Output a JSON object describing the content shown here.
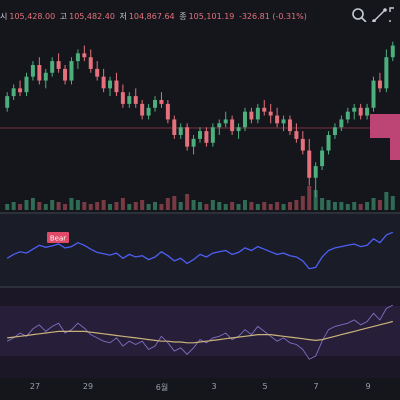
{
  "ohlc": {
    "open_label": "시",
    "open_value": "105,428.00",
    "high_label": "고",
    "high_value": "105,482.40",
    "low_label": "저",
    "low_value": "104,867.64",
    "close_label": "종",
    "close_value": "105,101.19",
    "change_text": "-326.81 (-0.31%)"
  },
  "toolbar": {
    "zoom_icon": "zoom-in-icon",
    "draw_icon": "trendline-icon",
    "expand_icon": "expand-icon"
  },
  "colors": {
    "up": "#4caf7d",
    "down": "#e5717d",
    "rsi_line": "#4d5ef5",
    "bear_label": "#e04a68",
    "pink_zone": "#d94d86"
  },
  "rsi_panel": {
    "signal_label": "Bear"
  },
  "x_axis": {
    "labels": [
      "27",
      "29",
      "6월",
      "3",
      "5",
      "7",
      "9"
    ]
  },
  "chart_data": [
    {
      "type": "candlestick",
      "title": "",
      "series": [
        {
          "name": "",
          "values": [
            [
              100,
              104,
              99,
              103
            ],
            [
              103,
              106,
              102,
              105
            ],
            [
              105,
              107,
              103,
              104
            ],
            [
              104,
              109,
              103,
              108
            ],
            [
              108,
              112,
              107,
              111
            ],
            [
              111,
              113,
              106,
              107
            ],
            [
              107,
              110,
              105,
              109
            ],
            [
              109,
              113,
              108,
              112
            ],
            [
              112,
              114,
              109,
              110
            ],
            [
              110,
              111,
              106,
              107
            ],
            [
              107,
              113,
              106,
              112
            ],
            [
              112,
              115,
              110,
              114
            ],
            [
              114,
              116,
              112,
              113
            ],
            [
              113,
              115,
              109,
              110
            ],
            [
              110,
              112,
              107,
              108
            ],
            [
              108,
              110,
              104,
              105
            ],
            [
              105,
              108,
              103,
              107
            ],
            [
              107,
              109,
              103,
              104
            ],
            [
              104,
              106,
              100,
              101
            ],
            [
              101,
              104,
              100,
              103
            ],
            [
              103,
              105,
              100,
              101
            ],
            [
              101,
              102,
              97,
              98
            ],
            [
              98,
              101,
              97,
              100
            ],
            [
              100,
              103,
              99,
              102
            ],
            [
              102,
              104,
              100,
              101
            ],
            [
              101,
              102,
              96,
              97
            ],
            [
              97,
              98,
              92,
              93
            ],
            [
              93,
              96,
              92,
              95
            ],
            [
              95,
              96,
              89,
              90
            ],
            [
              90,
              93,
              88,
              92
            ],
            [
              92,
              95,
              91,
              94
            ],
            [
              94,
              95,
              90,
              91
            ],
            [
              91,
              96,
              90,
              95
            ],
            [
              95,
              97,
              93,
              96
            ],
            [
              96,
              99,
              95,
              97
            ],
            [
              97,
              98,
              93,
              94
            ],
            [
              94,
              96,
              92,
              95
            ],
            [
              95,
              100,
              94,
              99
            ],
            [
              99,
              100,
              96,
              97
            ],
            [
              97,
              101,
              96,
              100
            ],
            [
              100,
              102,
              98,
              99
            ],
            [
              99,
              101,
              96,
              98
            ],
            [
              98,
              100,
              95,
              96
            ],
            [
              96,
              98,
              94,
              97
            ],
            [
              97,
              98,
              93,
              94
            ],
            [
              94,
              96,
              91,
              92
            ],
            [
              92,
              94,
              88,
              89
            ],
            [
              89,
              92,
              80,
              82
            ],
            [
              82,
              86,
              77,
              85
            ],
            [
              85,
              90,
              84,
              89
            ],
            [
              89,
              94,
              88,
              93
            ],
            [
              93,
              96,
              92,
              95
            ],
            [
              95,
              98,
              94,
              97
            ],
            [
              97,
              100,
              96,
              99
            ],
            [
              99,
              101,
              97,
              100
            ],
            [
              100,
              101,
              97,
              98
            ],
            [
              98,
              101,
              97,
              100
            ],
            [
              100,
              108,
              99,
              107
            ],
            [
              107,
              109,
              104,
              105
            ],
            [
              105,
              115,
              104,
              113
            ],
            [
              113,
              117,
              112,
              116
            ]
          ]
        }
      ],
      "volume": [
        3,
        4,
        3,
        5,
        6,
        4,
        3,
        5,
        4,
        3,
        6,
        5,
        4,
        3,
        4,
        5,
        3,
        4,
        6,
        3,
        4,
        5,
        3,
        4,
        3,
        6,
        7,
        4,
        8,
        5,
        4,
        3,
        5,
        4,
        3,
        4,
        3,
        5,
        4,
        3,
        4,
        3,
        4,
        3,
        4,
        5,
        7,
        12,
        10,
        6,
        5,
        4,
        4,
        3,
        4,
        3,
        4,
        6,
        5,
        9,
        7
      ],
      "ylim": [
        75,
        120
      ]
    },
    {
      "type": "line",
      "title": "",
      "series": [
        {
          "name": "",
          "values": [
            38,
            44,
            48,
            46,
            52,
            58,
            55,
            57,
            60,
            54,
            56,
            62,
            58,
            52,
            47,
            45,
            43,
            46,
            38,
            44,
            40,
            42,
            36,
            40,
            48,
            42,
            34,
            38,
            30,
            36,
            44,
            40,
            46,
            48,
            50,
            44,
            47,
            54,
            50,
            56,
            52,
            48,
            44,
            46,
            42,
            40,
            34,
            22,
            24,
            40,
            50,
            54,
            56,
            58,
            60,
            56,
            58,
            68,
            62,
            74,
            78
          ]
        }
      ],
      "ylim": [
        0,
        100
      ]
    },
    {
      "type": "line",
      "title": "",
      "series": [
        {
          "name": "",
          "values": [
            40,
            44,
            50,
            46,
            55,
            60,
            52,
            58,
            62,
            50,
            54,
            62,
            56,
            48,
            44,
            40,
            38,
            44,
            34,
            40,
            36,
            40,
            30,
            34,
            46,
            38,
            28,
            32,
            24,
            32,
            42,
            38,
            44,
            46,
            50,
            42,
            46,
            54,
            48,
            58,
            52,
            46,
            40,
            44,
            38,
            36,
            30,
            18,
            22,
            40,
            54,
            58,
            60,
            62,
            66,
            60,
            64,
            74,
            66,
            80,
            84
          ]
        },
        {
          "name": "",
          "values": [
            44,
            45,
            46,
            47,
            48,
            49,
            50,
            51,
            52,
            52,
            52,
            52,
            52,
            51,
            50,
            49,
            48,
            47,
            46,
            45,
            44,
            43,
            42,
            41,
            40,
            40,
            39,
            39,
            38,
            38,
            39,
            40,
            41,
            42,
            43,
            44,
            45,
            46,
            47,
            48,
            48,
            48,
            47,
            46,
            45,
            44,
            43,
            42,
            41,
            42,
            44,
            46,
            48,
            50,
            52,
            54,
            56,
            58,
            60,
            62,
            64
          ]
        }
      ],
      "ylim": [
        0,
        100
      ]
    }
  ]
}
